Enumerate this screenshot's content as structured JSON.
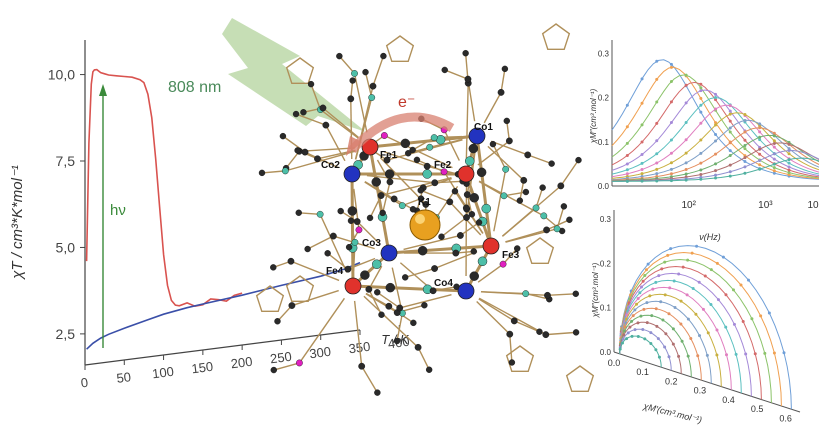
{
  "chart_data": [
    {
      "type": "line",
      "ylabel": "χT / cm³*K*mol⁻¹",
      "xlabel": "T / K",
      "xlim": [
        0,
        400
      ],
      "ylim": [
        1.6,
        11.0
      ],
      "x_ticks": [
        "0",
        "50",
        "100",
        "150",
        "200",
        "250",
        "300",
        "350",
        "400"
      ],
      "y_ticks": [
        "2,5",
        "5,0",
        "7,5",
        "10,0"
      ],
      "x_tick_values": [
        0,
        50,
        100,
        150,
        200,
        250,
        300,
        350,
        400
      ],
      "y_tick_values": [
        2.5,
        5.0,
        7.5,
        10.0
      ],
      "annotations": {
        "light": "808 nm",
        "photon": "hν",
        "electron": "e⁻"
      },
      "series": [
        {
          "color": "#d9534f",
          "x": [
            2,
            5,
            8,
            10,
            12,
            15,
            20,
            25,
            30,
            40,
            50,
            60,
            70,
            75,
            80,
            85,
            90,
            95,
            100,
            105,
            110,
            115,
            120,
            130,
            140,
            150,
            160,
            170,
            180,
            190,
            200
          ],
          "y": [
            4.6,
            8.0,
            9.7,
            10.05,
            10.1,
            10.1,
            10.0,
            9.95,
            9.9,
            9.85,
            9.8,
            9.75,
            9.65,
            9.55,
            9.2,
            8.5,
            7.3,
            5.9,
            4.5,
            3.6,
            3.15,
            3.0,
            2.95,
            2.95,
            2.95,
            2.95,
            2.97,
            3.0,
            3.0,
            3.02,
            3.05
          ]
        },
        {
          "color": "#3a4fa8",
          "x": [
            2,
            10,
            20,
            30,
            50,
            80,
            100,
            130,
            150,
            200,
            250,
            300,
            330,
            350
          ],
          "y": [
            2.05,
            2.2,
            2.32,
            2.4,
            2.52,
            2.68,
            2.78,
            2.88,
            2.93,
            3.04,
            3.18,
            3.3,
            3.42,
            3.55
          ]
        }
      ]
    },
    {
      "type": "line",
      "ylabel": "χM″(cm³.mol⁻¹)",
      "xlabel": "ν(Hz)",
      "x_scale": "log",
      "xlim": [
        10,
        5000
      ],
      "ylim": [
        0,
        0.33
      ],
      "x_ticks": [
        "10²",
        "10³",
        "10"
      ],
      "y_ticks": [
        "0.0",
        "0.1",
        "0.2",
        "0.3"
      ]
    },
    {
      "type": "scatter",
      "ylabel": "χM″(cm³.mol⁻¹)",
      "xlabel": "χM′(cm³.mol⁻¹)",
      "xlim": [
        0.0,
        0.65
      ],
      "ylim": [
        0.0,
        0.32
      ],
      "x_ticks": [
        "0.0",
        "0.1",
        "0.2",
        "0.3",
        "0.4",
        "0.5",
        "0.6"
      ],
      "y_ticks": [
        "0.0",
        "0.1",
        "0.2",
        "0.3"
      ]
    }
  ],
  "molecule": {
    "labels": [
      "Fe1",
      "Fe2",
      "Fe3",
      "Fe4",
      "Co1",
      "Co2",
      "Co3",
      "Co4",
      "K1"
    ],
    "colors": {
      "fe": "#e0322c",
      "co": "#2233c0",
      "k": "#e8a020",
      "c": "#2a2a2a",
      "n": "#4dbfa8",
      "p": "#e020c0",
      "bond": "#b0905a"
    }
  }
}
